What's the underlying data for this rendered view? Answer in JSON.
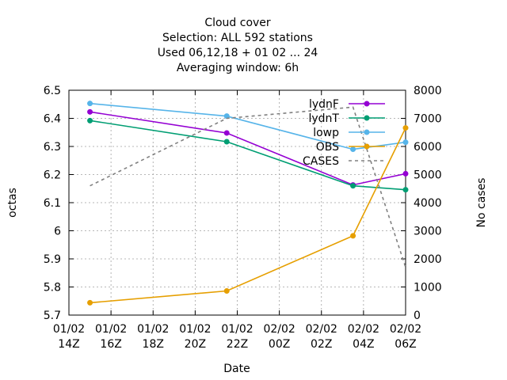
{
  "chart_data": {
    "type": "line",
    "title_lines": [
      "Cloud cover",
      "Selection: ALL    592 stations",
      "Used  06,12,18  + 01 02 ... 24",
      "Averaging window:  6h"
    ],
    "xlabel": "Date",
    "ylabel": "octas",
    "y2label": "No cases",
    "xlim": [
      0,
      16
    ],
    "ylim": [
      5.7,
      6.5
    ],
    "y2lim": [
      0,
      8000
    ],
    "xticks": [
      {
        "x": 0,
        "label": [
          "01/02",
          "14Z"
        ]
      },
      {
        "x": 2,
        "label": [
          "01/02",
          "16Z"
        ]
      },
      {
        "x": 4,
        "label": [
          "01/02",
          "18Z"
        ]
      },
      {
        "x": 6,
        "label": [
          "01/02",
          "20Z"
        ]
      },
      {
        "x": 8,
        "label": [
          "01/02",
          "22Z"
        ]
      },
      {
        "x": 10,
        "label": [
          "02/02",
          "00Z"
        ]
      },
      {
        "x": 12,
        "label": [
          "02/02",
          "02Z"
        ]
      },
      {
        "x": 14,
        "label": [
          "02/02",
          "04Z"
        ]
      },
      {
        "x": 16,
        "label": [
          "02/02",
          "06Z"
        ]
      }
    ],
    "yticks": [
      5.7,
      5.8,
      5.9,
      6.0,
      6.1,
      6.2,
      6.3,
      6.4,
      6.5
    ],
    "ytick_labels": [
      "5.7",
      "5.8",
      "5.9",
      "6",
      "6.1",
      "6.2",
      "6.3",
      "6.4",
      "6.5"
    ],
    "y2ticks": [
      0,
      1000,
      2000,
      3000,
      4000,
      5000,
      6000,
      7000,
      8000
    ],
    "grid": true,
    "legend_position": "top-right",
    "series": [
      {
        "name": "lydnF",
        "color": "#9400d3",
        "marker": "circle",
        "axis": "y1",
        "x": [
          1,
          7.5,
          13.5,
          16
        ],
        "y": [
          6.423,
          6.348,
          6.163,
          6.203
        ]
      },
      {
        "name": "lydnT",
        "color": "#009e73",
        "marker": "circle",
        "axis": "y1",
        "x": [
          1,
          7.5,
          13.5,
          16
        ],
        "y": [
          6.392,
          6.317,
          6.16,
          6.146
        ]
      },
      {
        "name": "lowp",
        "color": "#56b4e9",
        "marker": "circle",
        "axis": "y1",
        "x": [
          1,
          7.5,
          13.5,
          16
        ],
        "y": [
          6.453,
          6.408,
          6.29,
          6.315
        ]
      },
      {
        "name": "OBS",
        "color": "#e69f00",
        "marker": "circle",
        "axis": "y1",
        "x": [
          1,
          7.5,
          13.5,
          16
        ],
        "y": [
          5.744,
          5.786,
          5.982,
          6.366
        ]
      },
      {
        "name": "CASES",
        "color": "#808080",
        "marker": "none",
        "dash": true,
        "axis": "y2",
        "x": [
          1,
          7.5,
          13.5,
          16
        ],
        "y": [
          4600,
          7000,
          7400,
          1700
        ]
      }
    ]
  }
}
